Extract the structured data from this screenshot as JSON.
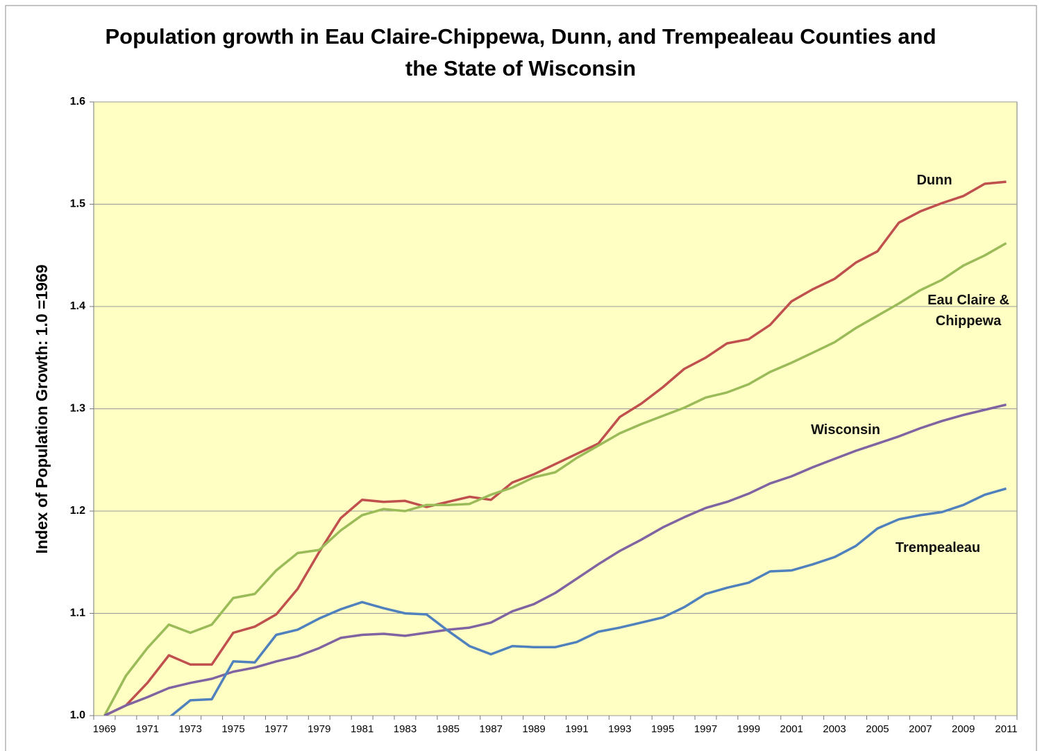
{
  "chart_data": {
    "type": "line",
    "title": "Population growth in Eau Claire-Chippewa, Dunn, and Trempealeau Counties and the State of Wisconsin",
    "y_label": "Index of  Population Growth: 1.0 =1969",
    "categories": [
      "1969",
      null,
      "1971",
      null,
      "1973",
      null,
      "1975",
      null,
      "1977",
      null,
      "1979",
      null,
      "1981",
      null,
      "1983",
      null,
      "1985",
      null,
      "1987",
      null,
      "1989",
      null,
      "1991",
      null,
      "1993",
      null,
      "1995",
      null,
      "1997",
      null,
      "1999",
      null,
      "2001",
      null,
      "2003",
      null,
      "2005",
      null,
      "2007",
      null,
      "2009",
      null,
      "2011"
    ],
    "ylim": [
      1,
      1.6
    ],
    "yticks": [
      {
        "value": 1,
        "label": "1.0"
      },
      1.1,
      1.2,
      1.3,
      1.4,
      1.5,
      1.6
    ],
    "grid": true,
    "series": [
      {
        "name": "Dunn",
        "color": "#c0504d",
        "values": [
          1.0,
          1.01,
          1.032,
          1.059,
          1.05,
          1.05,
          1.081,
          1.087,
          1.099,
          1.124,
          1.16,
          1.193,
          1.211,
          1.209,
          1.21,
          1.204,
          1.209,
          1.214,
          1.211,
          1.228,
          1.236,
          1.246,
          1.256,
          1.266,
          1.292,
          1.305,
          1.321,
          1.339,
          1.35,
          1.364,
          1.368,
          1.382,
          1.405,
          1.417,
          1.427,
          1.443,
          1.454,
          1.482,
          1.493,
          1.501,
          1.508,
          1.52,
          1.522
        ]
      },
      {
        "name": "Eau Claire & Chippewa",
        "color": "#9bbb59",
        "values": [
          1.0,
          1.039,
          1.066,
          1.089,
          1.081,
          1.089,
          1.115,
          1.119,
          1.142,
          1.159,
          1.162,
          1.181,
          1.196,
          1.202,
          1.2,
          1.206,
          1.206,
          1.207,
          1.216,
          1.223,
          1.233,
          1.238,
          1.252,
          1.264,
          1.276,
          1.285,
          1.293,
          1.301,
          1.311,
          1.316,
          1.324,
          1.336,
          1.345,
          1.355,
          1.365,
          1.379,
          1.391,
          1.403,
          1.416,
          1.426,
          1.44,
          1.45,
          1.462
        ]
      },
      {
        "name": "Wisconsin",
        "color": "#8064a2",
        "values": [
          1.0,
          1.01,
          1.018,
          1.027,
          1.032,
          1.036,
          1.043,
          1.047,
          1.053,
          1.058,
          1.066,
          1.076,
          1.079,
          1.08,
          1.078,
          1.081,
          1.084,
          1.086,
          1.091,
          1.102,
          1.109,
          1.12,
          1.134,
          1.148,
          1.161,
          1.172,
          1.184,
          1.194,
          1.203,
          1.209,
          1.217,
          1.227,
          1.234,
          1.243,
          1.251,
          1.259,
          1.266,
          1.273,
          1.281,
          1.288,
          1.294,
          1.299,
          1.304
        ]
      },
      {
        "name": "Trempealeau",
        "color": "#4f81bd",
        "values": [
          null,
          null,
          null,
          0.998,
          1.015,
          1.016,
          1.053,
          1.052,
          1.079,
          1.084,
          1.095,
          1.104,
          1.111,
          1.105,
          1.1,
          1.099,
          1.083,
          1.068,
          1.06,
          1.068,
          1.067,
          1.067,
          1.072,
          1.082,
          1.086,
          1.091,
          1.096,
          1.106,
          1.119,
          1.125,
          1.13,
          1.141,
          1.142,
          1.148,
          1.155,
          1.166,
          1.183,
          1.192,
          1.196,
          1.199,
          1.206,
          1.216,
          1.222
        ]
      }
    ]
  }
}
